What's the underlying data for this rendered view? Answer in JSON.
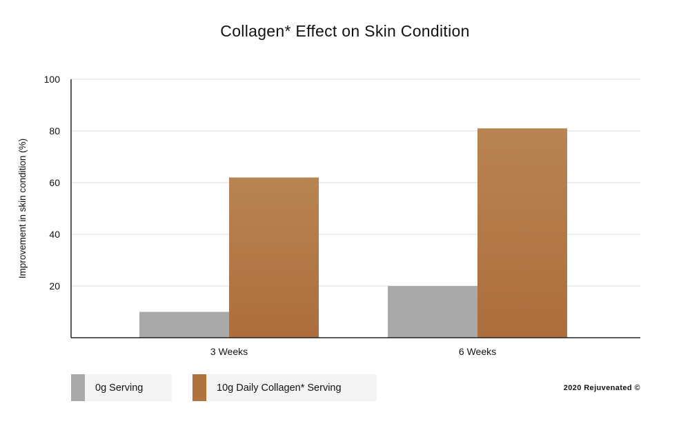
{
  "colors": {
    "series_gray": "#a9a9a9",
    "series_brown_top": "#b88552",
    "series_brown_bottom": "#ad6d3c",
    "grid": "#dddddd",
    "axis": "#222222"
  },
  "legend": [
    {
      "label": "0g Serving",
      "color": "#a9a9a9"
    },
    {
      "label": "10g Daily Collagen* Serving",
      "color": "#b0733f"
    }
  ],
  "copyright": "2020 Rejuvenated ©",
  "chart_data": {
    "type": "bar",
    "title": "Collagen* Effect on Skin Condition",
    "xlabel": "",
    "ylabel": "Improvement in skin condition (%)",
    "categories": [
      "3 Weeks",
      "6 Weeks"
    ],
    "series": [
      {
        "name": "0g Serving",
        "values": [
          10,
          20
        ]
      },
      {
        "name": "10g Daily Collagen* Serving",
        "values": [
          62,
          81
        ]
      }
    ],
    "ylim": [
      0,
      100
    ],
    "yticks": [
      20,
      40,
      60,
      80,
      100
    ],
    "grid": true,
    "legend_position": "bottom-left"
  }
}
